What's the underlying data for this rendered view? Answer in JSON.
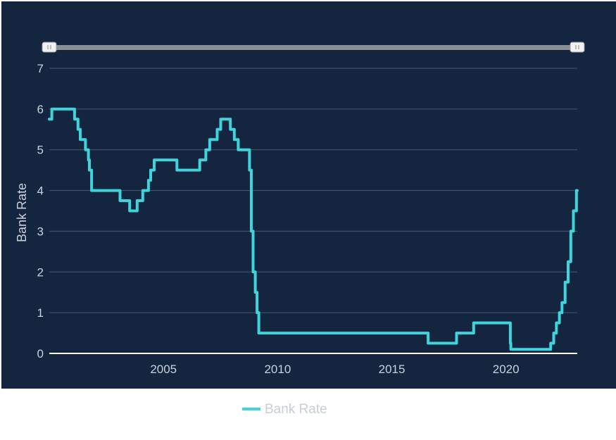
{
  "chart_data": {
    "type": "line",
    "step": "after",
    "title": "",
    "xlabel": "",
    "ylabel": "Bank Rate",
    "xlim": [
      "2000-01-01",
      "2023-02-15"
    ],
    "ylim": [
      0,
      7
    ],
    "x_ticks": [
      {
        "date": "2005-01-01",
        "label": "2005"
      },
      {
        "date": "2010-01-01",
        "label": "2010"
      },
      {
        "date": "2015-01-01",
        "label": "2015"
      },
      {
        "date": "2020-01-01",
        "label": "2020"
      }
    ],
    "y_ticks": [
      0,
      1,
      2,
      3,
      4,
      5,
      6,
      7
    ],
    "grid": true,
    "range_slider": true,
    "legend_position": "bottom-center",
    "colors": {
      "background": "#13253f",
      "line": "#3fd3dc",
      "grid": "#4a5a72",
      "slider": "#8a8f96"
    },
    "series": [
      {
        "name": "Bank Rate",
        "x": [
          "2000-01-01",
          "2000-02-10",
          "2000-05-04",
          "2001-02-08",
          "2001-04-05",
          "2001-05-10",
          "2001-08-02",
          "2001-09-18",
          "2001-10-04",
          "2001-11-08",
          "2003-02-06",
          "2003-07-10",
          "2003-11-06",
          "2004-02-05",
          "2004-05-06",
          "2004-06-10",
          "2004-08-05",
          "2005-08-04",
          "2006-08-03",
          "2006-11-09",
          "2007-01-11",
          "2007-05-10",
          "2007-07-05",
          "2007-12-06",
          "2008-02-07",
          "2008-04-10",
          "2008-10-08",
          "2008-11-06",
          "2008-12-04",
          "2009-01-08",
          "2009-02-05",
          "2009-03-05",
          "2016-08-04",
          "2017-11-02",
          "2018-08-02",
          "2020-03-11",
          "2020-03-19",
          "2021-12-16",
          "2022-02-03",
          "2022-03-17",
          "2022-05-05",
          "2022-06-16",
          "2022-08-04",
          "2022-09-22",
          "2022-11-03",
          "2022-12-15",
          "2023-02-02",
          "2023-02-15"
        ],
        "values": [
          5.75,
          6.0,
          6.0,
          5.75,
          5.5,
          5.25,
          5.0,
          4.75,
          4.5,
          4.0,
          3.75,
          3.5,
          3.75,
          4.0,
          4.25,
          4.5,
          4.75,
          4.5,
          4.75,
          5.0,
          5.25,
          5.5,
          5.75,
          5.5,
          5.25,
          5.0,
          4.5,
          3.0,
          2.0,
          1.5,
          1.0,
          0.5,
          0.25,
          0.5,
          0.75,
          0.25,
          0.1,
          0.25,
          0.5,
          0.75,
          1.0,
          1.25,
          1.75,
          2.25,
          3.0,
          3.5,
          4.0,
          4.0
        ]
      }
    ]
  },
  "legend": {
    "label": "Bank Rate"
  }
}
